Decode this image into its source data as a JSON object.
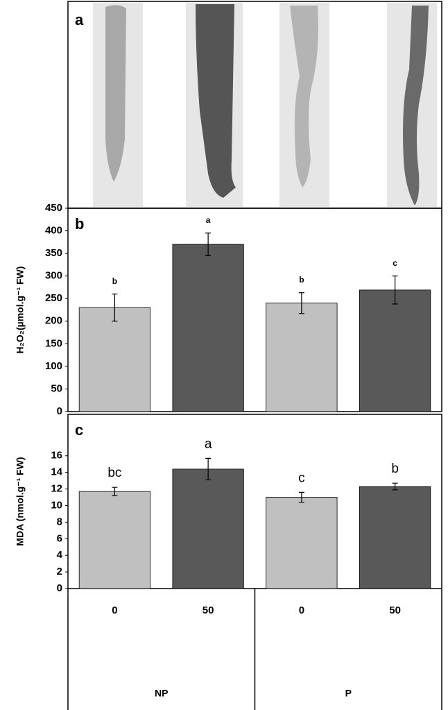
{
  "image_panel": {
    "label": "a"
  },
  "chart_data": [
    {
      "type": "bar",
      "panel_label": "b",
      "ylabel": "H₂O₂(µmol.g⁻¹ FW)",
      "categories": [
        "0",
        "50",
        "0",
        "50"
      ],
      "values": [
        230,
        370,
        240,
        269
      ],
      "errors": [
        30,
        25,
        23,
        31
      ],
      "annotations": [
        "b",
        "a",
        "b",
        "c"
      ],
      "colors": [
        "#c0c0c0",
        "#595959",
        "#c0c0c0",
        "#595959"
      ],
      "ylim": [
        0,
        450
      ],
      "yticks": [
        0,
        50,
        100,
        150,
        200,
        250,
        300,
        350,
        400,
        450
      ]
    },
    {
      "type": "bar",
      "panel_label": "c",
      "ylabel": "MDA (nmol.g⁻¹ FW)",
      "categories": [
        "0",
        "50",
        "0",
        "50"
      ],
      "category_groups": [
        "NP",
        "P"
      ],
      "values": [
        11.7,
        14.4,
        11.0,
        12.3
      ],
      "errors": [
        0.5,
        1.3,
        0.6,
        0.4
      ],
      "annotations": [
        "bc",
        "a",
        "c",
        "b"
      ],
      "colors": [
        "#c0c0c0",
        "#595959",
        "#c0c0c0",
        "#595959"
      ],
      "ylim": [
        0,
        21
      ],
      "yticks": [
        0,
        2,
        4,
        6,
        8,
        10,
        12,
        14,
        16
      ]
    }
  ]
}
